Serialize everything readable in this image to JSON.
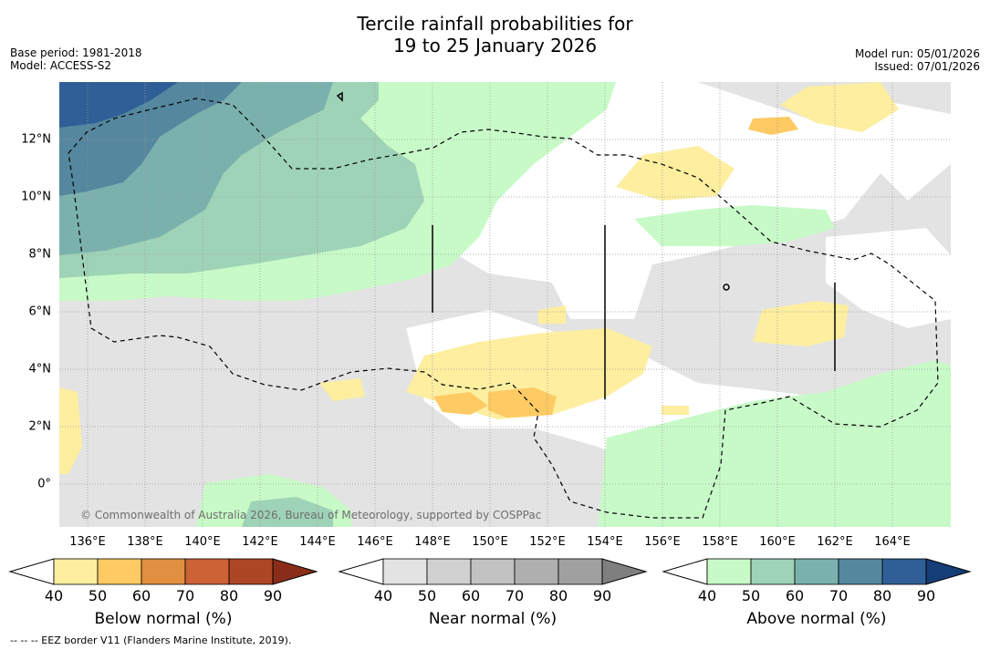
{
  "title": {
    "line1": "Tercile rainfall probabilities for",
    "line2": "19 to 25 January 2026"
  },
  "meta": {
    "base_period": "Base period: 1981-2018",
    "model": "Model: ACCESS-S2",
    "model_run": "Model run: 05/01/2026",
    "issued": "Issued: 07/01/2026"
  },
  "map": {
    "copyright": "© Commonwealth of Australia 2026, Bureau of Meteorology, supported by COSPPac",
    "longitude_labels": [
      "136°E",
      "138°E",
      "140°E",
      "142°E",
      "144°E",
      "146°E",
      "148°E",
      "150°E",
      "152°E",
      "154°E",
      "156°E",
      "158°E",
      "160°E",
      "162°E",
      "164°E"
    ],
    "latitude_labels": [
      "12°N",
      "10°N",
      "8°N",
      "6°N",
      "4°N",
      "2°N",
      "0°"
    ]
  },
  "colorbars": [
    {
      "title": "Below normal (%)",
      "ticks": [
        "40",
        "50",
        "60",
        "70",
        "80",
        "90"
      ],
      "colors": [
        "#ffffff",
        "#fdeea0",
        "#fdca63",
        "#e09040",
        "#cc6235",
        "#ad4624",
        "#8a2d18"
      ]
    },
    {
      "title": "Near normal (%)",
      "ticks": [
        "40",
        "50",
        "60",
        "70",
        "80",
        "90"
      ],
      "colors": [
        "#ffffff",
        "#e3e3e3",
        "#d1d1d1",
        "#c2c2c2",
        "#afafaf",
        "#a0a0a0",
        "#7f7f7f"
      ]
    },
    {
      "title": "Above normal (%)",
      "ticks": [
        "40",
        "50",
        "60",
        "70",
        "80",
        "90"
      ],
      "colors": [
        "#ffffff",
        "#c8fac8",
        "#9fd3b7",
        "#7ab1ad",
        "#55879f",
        "#2f5f96",
        "#153d78"
      ]
    }
  ],
  "footnote": "--  --  -- EEZ border V11 (Flanders Marine Institute, 2019)."
}
